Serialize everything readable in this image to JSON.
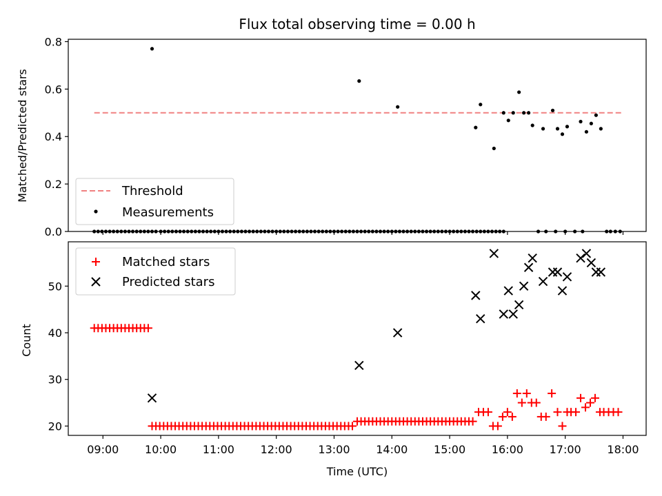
{
  "chart_data": [
    {
      "type": "scatter",
      "panel": "top",
      "title": "Flux total observing time = 0.00 h",
      "xlabel": "",
      "ylabel": "Matched/Predicted stars",
      "xlim": [
        "08:24",
        "18:24"
      ],
      "ylim": [
        0,
        0.81
      ],
      "yticks": [
        0.0,
        0.2,
        0.4,
        0.6,
        0.8
      ],
      "ytick_labels": [
        "0.0",
        "0.2",
        "0.4",
        "0.6",
        "0.8"
      ],
      "legend": {
        "position": "lower-left",
        "entries": [
          "Threshold",
          "Measurements"
        ]
      },
      "threshold": {
        "name": "Threshold",
        "y": 0.5,
        "x_start": "08:51",
        "x_end": "17:58",
        "color": "#f08080"
      },
      "measurements": {
        "name": "Measurements",
        "color": "#000000",
        "zero_points": [
          "08:51",
          "08:55",
          "08:59",
          "09:03",
          "09:07",
          "09:11",
          "09:15",
          "09:19",
          "09:23",
          "09:27",
          "09:31",
          "09:35",
          "09:39",
          "09:43",
          "09:47",
          "09:51",
          "09:55",
          "10:00",
          "10:04",
          "10:08",
          "10:12",
          "10:16",
          "10:20",
          "10:24",
          "10:28",
          "10:32",
          "10:36",
          "10:40",
          "10:44",
          "10:48",
          "10:52",
          "10:56",
          "11:00",
          "11:04",
          "11:08",
          "11:12",
          "11:16",
          "11:20",
          "11:24",
          "11:28",
          "11:32",
          "11:36",
          "11:40",
          "11:44",
          "11:48",
          "11:52",
          "11:56",
          "12:00",
          "12:04",
          "12:08",
          "12:12",
          "12:16",
          "12:20",
          "12:24",
          "12:28",
          "12:32",
          "12:36",
          "12:40",
          "12:44",
          "12:48",
          "12:52",
          "12:56",
          "13:00",
          "13:04",
          "13:08",
          "13:12",
          "13:16",
          "13:20",
          "13:24",
          "13:28",
          "13:32",
          "13:36",
          "13:40",
          "13:44",
          "13:48",
          "13:52",
          "13:56",
          "14:00",
          "14:04",
          "14:08",
          "14:12",
          "14:16",
          "14:20",
          "14:24",
          "14:28",
          "14:32",
          "14:36",
          "14:40",
          "14:44",
          "14:48",
          "14:52",
          "14:56",
          "15:00",
          "15:04",
          "15:08",
          "15:12",
          "15:16",
          "15:20",
          "15:24",
          "15:28",
          "15:32",
          "15:36",
          "15:40",
          "15:44",
          "15:48",
          "15:52",
          "15:56",
          "16:32",
          "16:40",
          "16:50",
          "17:00",
          "17:10",
          "17:18",
          "17:43",
          "17:47",
          "17:52",
          "17:57"
        ],
        "points": [
          {
            "t": "09:51",
            "v": 0.77
          },
          {
            "t": "13:26",
            "v": 0.634
          },
          {
            "t": "14:06",
            "v": 0.525
          },
          {
            "t": "15:27",
            "v": 0.438
          },
          {
            "t": "15:32",
            "v": 0.535
          },
          {
            "t": "15:46",
            "v": 0.35
          },
          {
            "t": "15:56",
            "v": 0.5
          },
          {
            "t": "16:01",
            "v": 0.468
          },
          {
            "t": "16:06",
            "v": 0.5
          },
          {
            "t": "16:12",
            "v": 0.587
          },
          {
            "t": "16:17",
            "v": 0.5
          },
          {
            "t": "16:22",
            "v": 0.5
          },
          {
            "t": "16:26",
            "v": 0.447
          },
          {
            "t": "16:37",
            "v": 0.433
          },
          {
            "t": "16:47",
            "v": 0.51
          },
          {
            "t": "16:52",
            "v": 0.433
          },
          {
            "t": "16:57",
            "v": 0.41
          },
          {
            "t": "17:02",
            "v": 0.442
          },
          {
            "t": "17:16",
            "v": 0.463
          },
          {
            "t": "17:22",
            "v": 0.42
          },
          {
            "t": "17:27",
            "v": 0.455
          },
          {
            "t": "17:32",
            "v": 0.49
          },
          {
            "t": "17:37",
            "v": 0.433
          }
        ]
      }
    },
    {
      "type": "scatter",
      "panel": "bottom",
      "title": "",
      "xlabel": "Time (UTC)",
      "ylabel": "Count",
      "xlim": [
        "08:24",
        "18:24"
      ],
      "ylim": [
        18,
        59.5
      ],
      "xticks": [
        "09:00",
        "10:00",
        "11:00",
        "12:00",
        "13:00",
        "14:00",
        "15:00",
        "16:00",
        "17:00",
        "18:00"
      ],
      "yticks": [
        20,
        30,
        40,
        50
      ],
      "legend": {
        "position": "upper-left",
        "entries": [
          "Matched stars",
          "Predicted stars"
        ]
      },
      "series": [
        {
          "name": "Matched stars",
          "marker": "plus",
          "color": "#ff0000",
          "groups": [
            {
              "from": "08:51",
              "to": "09:47",
              "step_min": 4,
              "value": 41
            },
            {
              "from": "09:51",
              "to": "13:20",
              "step_min": 4,
              "value": 20
            },
            {
              "from": "13:24",
              "to": "15:24",
              "step_min": 4,
              "value": 21
            }
          ],
          "points": [
            {
              "t": "15:30",
              "v": 23
            },
            {
              "t": "15:35",
              "v": 23
            },
            {
              "t": "15:40",
              "v": 23
            },
            {
              "t": "15:45",
              "v": 20
            },
            {
              "t": "15:50",
              "v": 20
            },
            {
              "t": "15:55",
              "v": 22
            },
            {
              "t": "16:00",
              "v": 23
            },
            {
              "t": "16:05",
              "v": 22
            },
            {
              "t": "16:10",
              "v": 27
            },
            {
              "t": "16:15",
              "v": 25
            },
            {
              "t": "16:20",
              "v": 27
            },
            {
              "t": "16:25",
              "v": 25
            },
            {
              "t": "16:30",
              "v": 25
            },
            {
              "t": "16:35",
              "v": 22
            },
            {
              "t": "16:40",
              "v": 22
            },
            {
              "t": "16:46",
              "v": 27
            },
            {
              "t": "16:52",
              "v": 23
            },
            {
              "t": "16:57",
              "v": 20
            },
            {
              "t": "17:02",
              "v": 23
            },
            {
              "t": "17:06",
              "v": 23
            },
            {
              "t": "17:11",
              "v": 23
            },
            {
              "t": "17:16",
              "v": 26
            },
            {
              "t": "17:21",
              "v": 24
            },
            {
              "t": "17:26",
              "v": 25
            },
            {
              "t": "17:31",
              "v": 26
            },
            {
              "t": "17:36",
              "v": 23
            },
            {
              "t": "17:40",
              "v": 23
            },
            {
              "t": "17:45",
              "v": 23
            },
            {
              "t": "17:50",
              "v": 23
            },
            {
              "t": "17:55",
              "v": 23
            }
          ]
        },
        {
          "name": "Predicted stars",
          "marker": "x",
          "color": "#000000",
          "points": [
            {
              "t": "09:51",
              "v": 26
            },
            {
              "t": "13:26",
              "v": 33
            },
            {
              "t": "14:06",
              "v": 40
            },
            {
              "t": "15:27",
              "v": 48
            },
            {
              "t": "15:32",
              "v": 43
            },
            {
              "t": "15:46",
              "v": 57
            },
            {
              "t": "15:56",
              "v": 44
            },
            {
              "t": "16:01",
              "v": 49
            },
            {
              "t": "16:06",
              "v": 44
            },
            {
              "t": "16:12",
              "v": 46
            },
            {
              "t": "16:17",
              "v": 50
            },
            {
              "t": "16:22",
              "v": 54
            },
            {
              "t": "16:26",
              "v": 56
            },
            {
              "t": "16:37",
              "v": 51
            },
            {
              "t": "16:47",
              "v": 53
            },
            {
              "t": "16:52",
              "v": 53
            },
            {
              "t": "16:57",
              "v": 49
            },
            {
              "t": "17:02",
              "v": 52
            },
            {
              "t": "17:16",
              "v": 56
            },
            {
              "t": "17:22",
              "v": 57
            },
            {
              "t": "17:27",
              "v": 55
            },
            {
              "t": "17:32",
              "v": 53
            },
            {
              "t": "17:37",
              "v": 53
            }
          ]
        }
      ]
    }
  ]
}
